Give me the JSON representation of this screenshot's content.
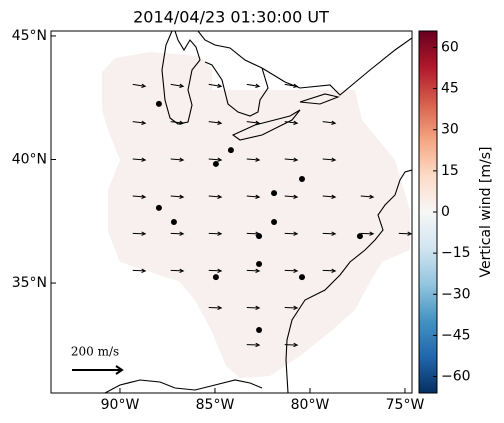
{
  "chart_data": {
    "type": "map",
    "title": "2014/04/23 01:30:00 UT",
    "xlim": [
      -93.63,
      -74.63
    ],
    "ylim": [
      30.55,
      45.2
    ],
    "xticks": [
      {
        "value": -90,
        "label": "90°W"
      },
      {
        "value": -85,
        "label": "85°W"
      },
      {
        "value": -80,
        "label": "80°W"
      },
      {
        "value": -75,
        "label": "75°W"
      }
    ],
    "yticks": [
      {
        "value": 35,
        "label": "35°N"
      },
      {
        "value": 40,
        "label": "40°N"
      },
      {
        "value": 45,
        "label": "45°N"
      }
    ],
    "stations": {
      "color": "#000000",
      "lon": [
        -87.95,
        -84.16,
        -84.95,
        -80.42,
        -81.89,
        -87.95,
        -87.16,
        -81.89,
        -82.68,
        -77.37,
        -82.68,
        -84.95,
        -80.42,
        -82.68
      ],
      "lat": [
        42.25,
        40.38,
        39.82,
        39.21,
        38.64,
        38.04,
        37.47,
        37.47,
        36.9,
        36.9,
        35.77,
        35.24,
        35.24,
        33.1
      ]
    },
    "arrows": {
      "color": "#000000",
      "lon": [
        -89,
        -87,
        -85,
        -83,
        -81,
        -89,
        -87,
        -85,
        -83,
        -81,
        -79,
        -89,
        -87,
        -85,
        -83,
        -81,
        -79,
        -89,
        -87,
        -85,
        -83,
        -81,
        -79,
        -77,
        -89,
        -87,
        -85,
        -83,
        -81,
        -79,
        -77,
        -75,
        -89,
        -87,
        -85,
        -83,
        -81,
        -79,
        -85,
        -83,
        -81,
        -83,
        -81
      ],
      "lat": [
        43,
        43,
        43,
        43,
        43,
        41.5,
        41.5,
        41.5,
        41.5,
        41.5,
        41.5,
        40,
        40,
        40,
        40,
        40,
        40,
        38.5,
        38.5,
        38.5,
        38.5,
        38.5,
        38.5,
        38.5,
        37,
        37,
        37,
        37,
        37,
        37,
        37,
        37,
        35.5,
        35.5,
        35.5,
        35.5,
        35.5,
        35.5,
        34,
        34,
        34,
        32.5,
        32.5
      ],
      "u": [
        50,
        50,
        50,
        50,
        50,
        50,
        50,
        50,
        50,
        50,
        50,
        50,
        50,
        50,
        50,
        50,
        50,
        50,
        50,
        50,
        50,
        50,
        50,
        50,
        50,
        50,
        50,
        50,
        50,
        50,
        50,
        50,
        50,
        50,
        50,
        50,
        50,
        50,
        50,
        50,
        50,
        50,
        50
      ],
      "v": [
        -8,
        -8,
        -8,
        -8,
        -8,
        -6,
        -6,
        -6,
        -6,
        -6,
        -6,
        -4,
        -4,
        -4,
        -4,
        -4,
        -4,
        -4,
        -4,
        -4,
        -4,
        -4,
        -4,
        -4,
        -2,
        -2,
        -2,
        -2,
        -2,
        -2,
        -2,
        -2,
        -2,
        -2,
        -2,
        -2,
        -2,
        -2,
        -2,
        -2,
        -2,
        -2,
        -2
      ]
    },
    "arrow_scale": {
      "value": 200,
      "label": "200 m/s"
    },
    "colorbar": {
      "label": "Vertical wind [m/s]",
      "lim": [
        -66,
        66
      ],
      "colors": [
        "#053061",
        "#2166ac",
        "#4393c3",
        "#92c5de",
        "#d1e5f0",
        "#f7f7f7",
        "#fddbc7",
        "#f4a582",
        "#d6604d",
        "#b2182b",
        "#67001f"
      ],
      "ticks": [
        {
          "value": -60,
          "label": "−60"
        },
        {
          "value": -45,
          "label": "−45"
        },
        {
          "value": -30,
          "label": "−30"
        },
        {
          "value": -15,
          "label": "−15"
        },
        0,
        15,
        30,
        45,
        60
      ]
    }
  }
}
